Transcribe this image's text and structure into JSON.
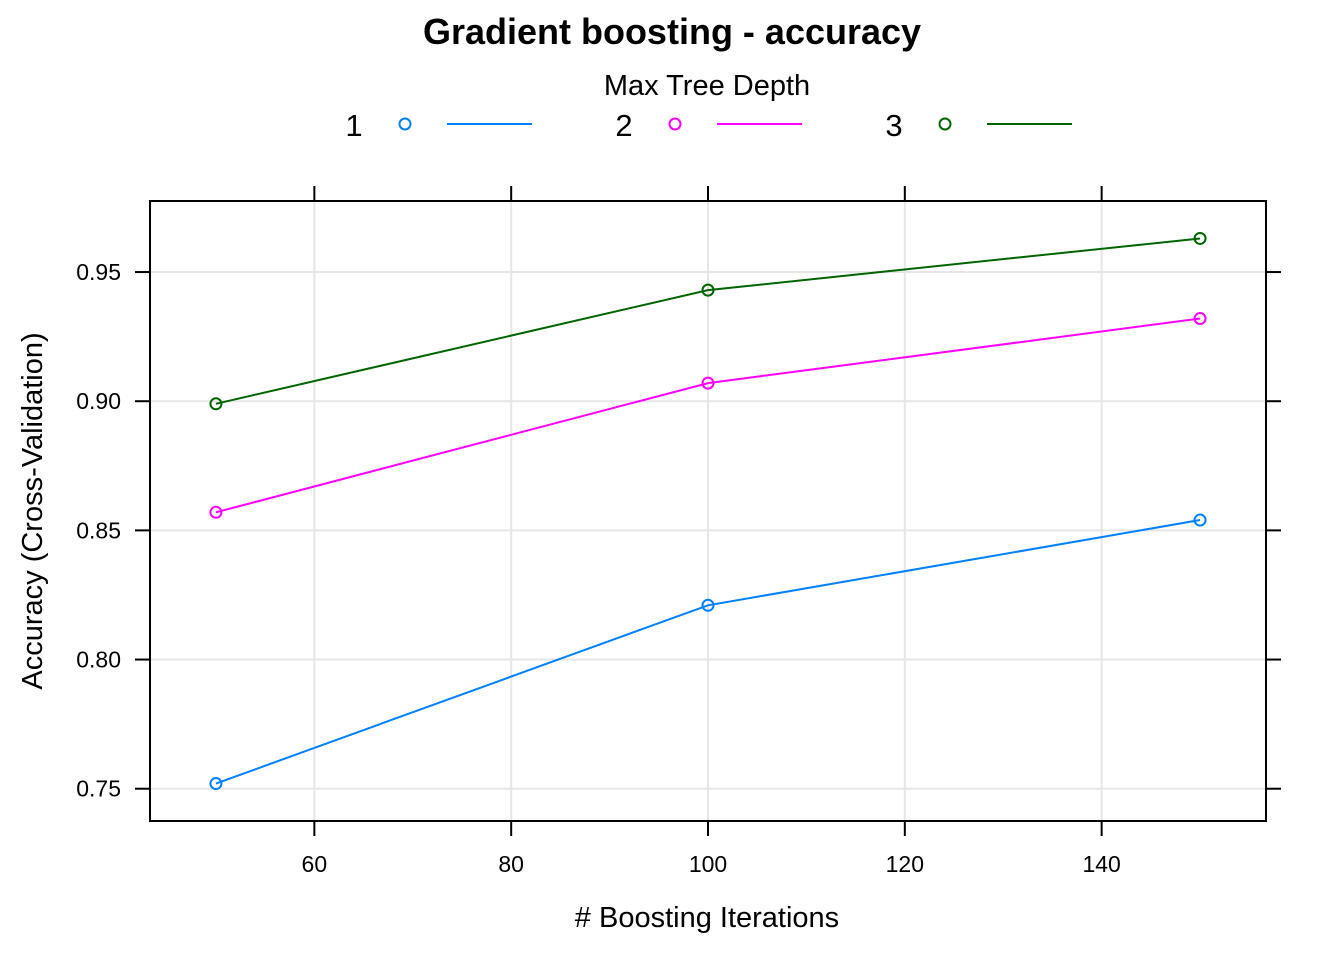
{
  "chart_data": {
    "type": "line",
    "title": "Gradient boosting - accuracy",
    "xlabel": "# Boosting Iterations",
    "ylabel": "Accuracy (Cross-Validation)",
    "legend": {
      "title": "Max Tree Depth",
      "placement": "top"
    },
    "x": [
      50,
      100,
      150
    ],
    "xlim": [
      43.3,
      156.7
    ],
    "ylim": [
      0.7375,
      0.9775
    ],
    "x_ticks": [
      60,
      80,
      100,
      120,
      140
    ],
    "y_ticks": [
      0.75,
      0.8,
      0.85,
      0.9,
      0.95
    ],
    "x_tick_labels": [
      "60",
      "80",
      "100",
      "120",
      "140"
    ],
    "y_tick_labels": [
      "0.75",
      "0.80",
      "0.85",
      "0.90",
      "0.95"
    ],
    "grid": true,
    "series": [
      {
        "name": "1",
        "color": "#0080ff",
        "values": [
          0.752,
          0.821,
          0.854
        ]
      },
      {
        "name": "2",
        "color": "#ff00ff",
        "values": [
          0.857,
          0.907,
          0.932
        ]
      },
      {
        "name": "3",
        "color": "#006400",
        "values": [
          0.899,
          0.943,
          0.963
        ]
      }
    ]
  }
}
